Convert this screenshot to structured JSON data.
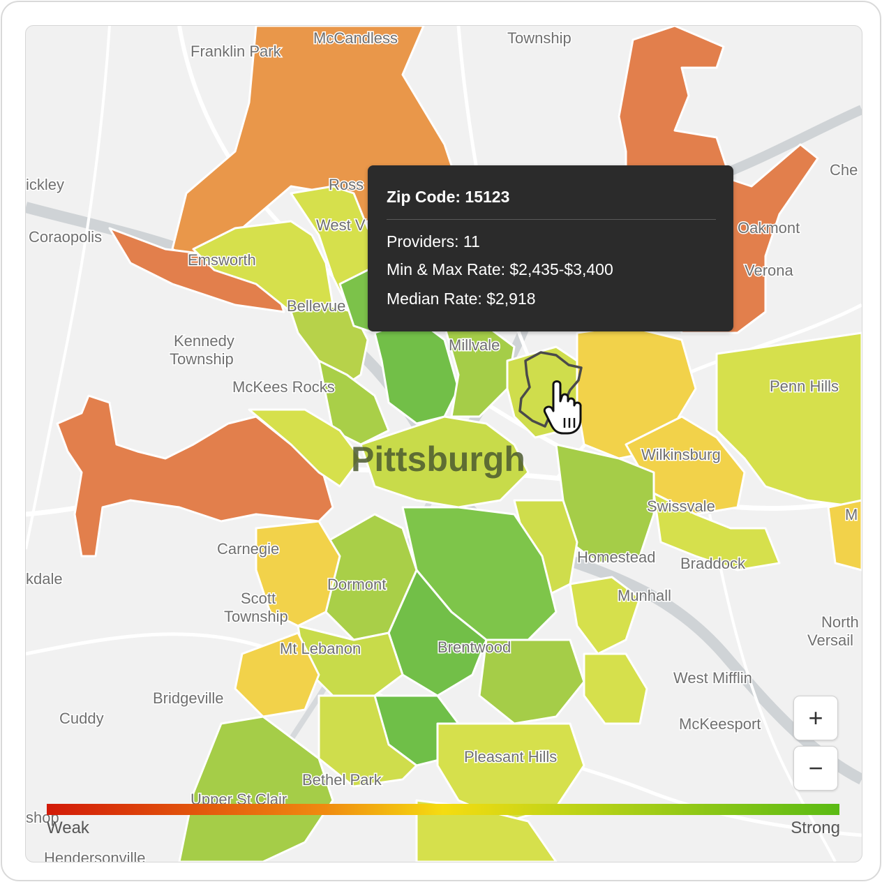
{
  "map": {
    "city_label": "Pittsburgh",
    "places": [
      "McCandless",
      "Township",
      "Franklin Park",
      "ickley",
      "Coraopolis",
      "Ross",
      "West V",
      "Emsworth",
      "Bellevue",
      "Kennedy",
      "Township",
      "McKees Rocks",
      "Millvale",
      "Oakmont",
      "Verona",
      "Che",
      "Penn Hills",
      "Wilkinsburg",
      "Swissvale",
      "M",
      "Homestead",
      "Braddock",
      "Munhall",
      "North",
      "Versail",
      "West Mifflin",
      "McKeesport",
      "Carnegie",
      "kdale",
      "Scott",
      "Township",
      "Dormont",
      "Mt Lebanon",
      "Brentwood",
      "Bridgeville",
      "Cuddy",
      "Pleasant Hills",
      "Bethel Park",
      "Upper St Clair",
      "shop",
      "Hendersonville"
    ]
  },
  "tooltip": {
    "title": "Zip Code: 15123",
    "providers": "Providers: 11",
    "rate_range": "Min & Max Rate: $2,435-$3,400",
    "median": "Median Rate: $2,918"
  },
  "zoom": {
    "in_label": "+",
    "out_label": "−"
  },
  "legend": {
    "low": "Weak",
    "high": "Strong",
    "colors": [
      "#d21a08",
      "#f08a10",
      "#f5dc10",
      "#c2d418",
      "#5aba14"
    ]
  },
  "icons": [
    "hand-pointer-icon",
    "plus-icon",
    "minus-icon"
  ]
}
